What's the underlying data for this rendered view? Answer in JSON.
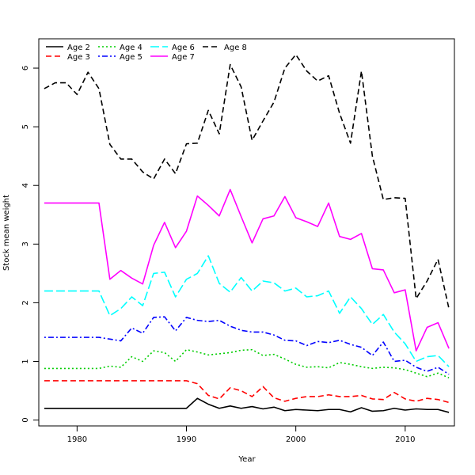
{
  "chart_data": {
    "type": "line",
    "title": "",
    "xlabel": "Year",
    "ylabel": "Stock mean weight",
    "xlim": [
      1976.5,
      2014.5
    ],
    "ylim": [
      -0.1,
      6.5
    ],
    "x_ticks": [
      1980,
      1990,
      2000,
      2010
    ],
    "y_ticks": [
      0,
      1,
      2,
      3,
      4,
      5,
      6
    ],
    "grid": false,
    "legend_position": "top-left",
    "x": [
      1977,
      1978,
      1979,
      1980,
      1981,
      1982,
      1983,
      1984,
      1985,
      1986,
      1987,
      1988,
      1989,
      1990,
      1991,
      1992,
      1993,
      1994,
      1995,
      1996,
      1997,
      1998,
      1999,
      2000,
      2001,
      2002,
      2003,
      2004,
      2005,
      2006,
      2007,
      2008,
      2009,
      2010,
      2011,
      2012,
      2013,
      2014
    ],
    "series": [
      {
        "name": "Age 2",
        "color": "#000000",
        "dash": "solid",
        "values": [
          0.2,
          0.2,
          0.2,
          0.2,
          0.2,
          0.2,
          0.2,
          0.2,
          0.2,
          0.2,
          0.2,
          0.2,
          0.2,
          0.2,
          0.37,
          0.27,
          0.2,
          0.24,
          0.2,
          0.23,
          0.19,
          0.22,
          0.16,
          0.18,
          0.17,
          0.16,
          0.18,
          0.18,
          0.14,
          0.21,
          0.15,
          0.16,
          0.2,
          0.17,
          0.19,
          0.18,
          0.18,
          0.13
        ]
      },
      {
        "name": "Age 3",
        "color": "#ff0000",
        "dash": "dashed",
        "values": [
          0.67,
          0.67,
          0.67,
          0.67,
          0.67,
          0.67,
          0.67,
          0.67,
          0.67,
          0.67,
          0.67,
          0.67,
          0.67,
          0.67,
          0.62,
          0.42,
          0.36,
          0.55,
          0.5,
          0.4,
          0.57,
          0.38,
          0.32,
          0.37,
          0.4,
          0.4,
          0.43,
          0.4,
          0.4,
          0.42,
          0.36,
          0.35,
          0.47,
          0.36,
          0.32,
          0.37,
          0.35,
          0.3
        ]
      },
      {
        "name": "Age 4",
        "color": "#00cd00",
        "dash": "dotted",
        "values": [
          0.88,
          0.88,
          0.88,
          0.88,
          0.88,
          0.88,
          0.92,
          0.9,
          1.08,
          1.0,
          1.18,
          1.15,
          1.0,
          1.2,
          1.16,
          1.11,
          1.13,
          1.15,
          1.19,
          1.2,
          1.1,
          1.12,
          1.04,
          0.95,
          0.9,
          0.91,
          0.89,
          0.98,
          0.95,
          0.91,
          0.88,
          0.9,
          0.89,
          0.86,
          0.8,
          0.74,
          0.8,
          0.72
        ]
      },
      {
        "name": "Age 5",
        "color": "#0000ff",
        "dash": "dashdot",
        "values": [
          1.41,
          1.41,
          1.41,
          1.41,
          1.41,
          1.41,
          1.38,
          1.35,
          1.57,
          1.48,
          1.75,
          1.76,
          1.52,
          1.75,
          1.7,
          1.68,
          1.7,
          1.6,
          1.53,
          1.5,
          1.5,
          1.45,
          1.36,
          1.35,
          1.27,
          1.34,
          1.32,
          1.36,
          1.29,
          1.24,
          1.1,
          1.33,
          1.0,
          1.02,
          0.9,
          0.83,
          0.9,
          0.78
        ]
      },
      {
        "name": "Age 6",
        "color": "#00ffff",
        "dash": "longdash",
        "values": [
          2.2,
          2.2,
          2.2,
          2.2,
          2.2,
          2.2,
          1.78,
          1.9,
          2.1,
          1.95,
          2.5,
          2.52,
          2.1,
          2.4,
          2.5,
          2.8,
          2.33,
          2.18,
          2.43,
          2.2,
          2.37,
          2.34,
          2.2,
          2.25,
          2.1,
          2.12,
          2.2,
          1.82,
          2.1,
          1.9,
          1.63,
          1.8,
          1.5,
          1.3,
          1.0,
          1.08,
          1.1,
          0.91
        ]
      },
      {
        "name": "Age 7",
        "color": "#ff00ff",
        "dash": "solid",
        "values": [
          3.7,
          3.7,
          3.7,
          3.7,
          3.7,
          3.7,
          2.4,
          2.55,
          2.42,
          2.32,
          2.98,
          3.37,
          2.94,
          3.22,
          3.82,
          3.66,
          3.48,
          3.93,
          3.47,
          3.02,
          3.43,
          3.48,
          3.81,
          3.45,
          3.38,
          3.3,
          3.7,
          3.13,
          3.08,
          3.18,
          2.58,
          2.56,
          2.17,
          2.22,
          1.18,
          1.58,
          1.66,
          1.22
        ]
      },
      {
        "name": "Age 8",
        "color": "#000000",
        "dash": "dashed",
        "values": [
          5.65,
          5.75,
          5.75,
          5.55,
          5.93,
          5.65,
          4.7,
          4.45,
          4.45,
          4.23,
          4.11,
          4.45,
          4.2,
          4.71,
          4.72,
          5.28,
          4.88,
          6.06,
          5.68,
          4.77,
          5.1,
          5.42,
          6.0,
          6.23,
          5.95,
          5.78,
          5.87,
          5.23,
          4.72,
          5.95,
          4.5,
          3.76,
          3.79,
          3.78,
          2.07,
          2.37,
          2.74,
          1.9
        ]
      }
    ]
  }
}
